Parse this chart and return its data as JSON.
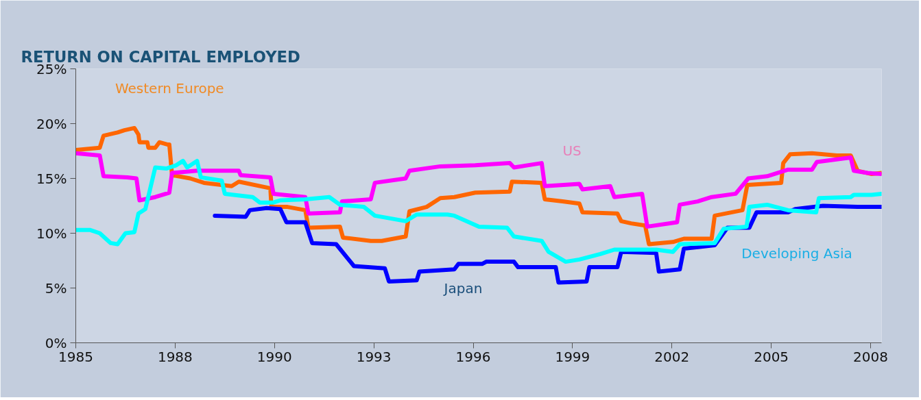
{
  "chart_data": {
    "type": "line",
    "title": "RETURN ON CAPITAL EMPLOYED",
    "xlim": [
      1984.65,
      2008.17
    ],
    "ylim": [
      0,
      25
    ],
    "xticks": [
      {
        "value": 1984.65,
        "label": "1985"
      },
      {
        "value": 1987.55,
        "label": "1988"
      },
      {
        "value": 1990.45,
        "label": "1990"
      },
      {
        "value": 1993.35,
        "label": "1993"
      },
      {
        "value": 1996.25,
        "label": "1996"
      },
      {
        "value": 1999.15,
        "label": "1999"
      },
      {
        "value": 2002.05,
        "label": "2002"
      },
      {
        "value": 2004.95,
        "label": "2005"
      },
      {
        "value": 2007.85,
        "label": "2008"
      }
    ],
    "yticks": [
      {
        "value": 0,
        "label": "0%"
      },
      {
        "value": 5,
        "label": "5%"
      },
      {
        "value": 10,
        "label": "10%"
      },
      {
        "value": 15,
        "label": "15%"
      },
      {
        "value": 20,
        "label": "20%"
      },
      {
        "value": 25,
        "label": "25%"
      }
    ],
    "grid": false,
    "legend": false,
    "marker": "none",
    "line_style": "solid",
    "series": [
      {
        "name": "Western Europe",
        "color": "#ff6600",
        "x": [
          1984.65,
          1985.35,
          1985.46,
          1985.87,
          1986.07,
          1986.36,
          1986.48,
          1986.51,
          1986.74,
          1986.77,
          1986.97,
          1987.09,
          1987.32,
          1987.38,
          1987.46,
          1987.99,
          1988.39,
          1989.2,
          1989.41,
          1990.33,
          1990.36,
          1990.83,
          1991.35,
          1991.44,
          1992.36,
          1992.45,
          1993.26,
          1993.58,
          1994.28,
          1994.39,
          1994.89,
          1995.29,
          1995.7,
          1996.31,
          1997.32,
          1997.38,
          1998.25,
          1998.34,
          1998.86,
          1999.35,
          1999.44,
          2000.46,
          2000.57,
          2000.86,
          2001.27,
          2001.38,
          2002.08,
          2002.4,
          2003.21,
          2003.3,
          2004.11,
          2004.25,
          2005.24,
          2005.3,
          2005.5,
          2006.14,
          2006.86,
          2007.27,
          2007.47,
          2007.88,
          2008.17
        ],
        "values": [
          17.6,
          17.8,
          18.9,
          19.2,
          19.4,
          19.6,
          19.0,
          18.3,
          18.3,
          17.8,
          17.8,
          18.3,
          18.1,
          18.1,
          15.3,
          15.0,
          14.6,
          14.3,
          14.7,
          14.1,
          12.4,
          12.4,
          12.1,
          10.5,
          10.6,
          9.6,
          9.3,
          9.3,
          9.7,
          12.0,
          12.4,
          13.2,
          13.3,
          13.7,
          13.8,
          14.7,
          14.6,
          13.1,
          12.9,
          12.7,
          11.9,
          11.8,
          11.1,
          10.9,
          10.7,
          9.0,
          9.2,
          9.5,
          9.5,
          11.6,
          12.1,
          14.4,
          14.6,
          16.4,
          17.2,
          17.3,
          17.1,
          17.1,
          15.7,
          15.4,
          15.5
        ]
      },
      {
        "name": "US",
        "color": "#ff00ff",
        "x": [
          1984.65,
          1985.35,
          1985.46,
          1986.16,
          1986.42,
          1986.51,
          1986.97,
          1987.38,
          1987.46,
          1988.19,
          1988.8,
          1989.41,
          1989.46,
          1990.33,
          1990.42,
          1991.35,
          1991.44,
          1992.36,
          1992.42,
          1993.26,
          1993.38,
          1994.28,
          1994.39,
          1995.29,
          1996.31,
          1997.32,
          1997.44,
          1998.25,
          1998.34,
          1999.35,
          1999.44,
          2000.25,
          2000.37,
          2001.18,
          2001.33,
          2002.2,
          2002.28,
          2002.8,
          2003.21,
          2003.91,
          2004.28,
          2004.83,
          2005.44,
          2006.14,
          2006.28,
          2007.27,
          2007.36,
          2007.76,
          2008.17
        ],
        "values": [
          17.3,
          17.1,
          15.2,
          15.1,
          15.0,
          13.0,
          13.3,
          13.7,
          15.5,
          15.7,
          15.7,
          15.7,
          15.3,
          15.1,
          13.6,
          13.3,
          11.8,
          11.9,
          12.9,
          13.1,
          14.6,
          15.0,
          15.7,
          16.1,
          16.2,
          16.4,
          16.0,
          16.4,
          14.3,
          14.5,
          14.0,
          14.3,
          13.3,
          13.6,
          10.6,
          11.0,
          12.6,
          12.9,
          13.3,
          13.6,
          15.0,
          15.2,
          15.8,
          15.8,
          16.5,
          16.9,
          15.7,
          15.5,
          15.4
        ]
      },
      {
        "name": "Japan",
        "color": "#0000ff",
        "x": [
          1988.71,
          1989.61,
          1989.73,
          1990.22,
          1990.62,
          1990.8,
          1991.35,
          1991.55,
          1992.25,
          1992.77,
          1993.67,
          1993.79,
          1994.6,
          1994.68,
          1995.7,
          1995.82,
          1996.51,
          1996.63,
          1997.44,
          1997.56,
          1998.66,
          1998.74,
          1999.56,
          1999.64,
          2000.46,
          2000.57,
          2001.59,
          2001.67,
          2002.28,
          2002.4,
          2003.3,
          2003.67,
          2004.31,
          2004.52,
          2005.44,
          2005.65,
          2006.46,
          2007.47,
          2008.17
        ],
        "values": [
          11.6,
          11.5,
          12.1,
          12.3,
          12.2,
          11.0,
          11.0,
          9.1,
          9.0,
          7.0,
          6.8,
          5.6,
          5.7,
          6.5,
          6.7,
          7.2,
          7.2,
          7.4,
          7.4,
          6.9,
          6.9,
          5.5,
          5.6,
          6.9,
          6.9,
          8.3,
          8.2,
          6.5,
          6.7,
          8.6,
          8.9,
          10.5,
          10.5,
          11.9,
          11.9,
          12.2,
          12.5,
          12.4,
          12.4
        ]
      },
      {
        "name": "Developing Asia",
        "color": "#00ffff",
        "x": [
          1984.65,
          1985.06,
          1985.35,
          1985.67,
          1985.87,
          1986.1,
          1986.36,
          1986.48,
          1986.68,
          1986.97,
          1987.29,
          1987.58,
          1987.78,
          1987.9,
          1988.19,
          1988.3,
          1988.91,
          1989.0,
          1989.81,
          1990.02,
          1990.42,
          1990.62,
          1991.35,
          1992.05,
          1992.36,
          1993.06,
          1993.38,
          1994.28,
          1994.6,
          1995.5,
          1995.7,
          1996.42,
          1997.24,
          1997.44,
          1998.25,
          1998.45,
          1998.95,
          1999.35,
          1999.96,
          2000.37,
          2001.59,
          2002.08,
          2002.28,
          2003.3,
          2003.56,
          2004.23,
          2004.31,
          2004.83,
          2005.44,
          2006.26,
          2006.34,
          2007.27,
          2007.36,
          2007.88,
          2008.17
        ],
        "values": [
          10.3,
          10.3,
          10.0,
          9.1,
          9.0,
          10.0,
          10.1,
          11.8,
          12.2,
          16.0,
          15.9,
          16.2,
          16.6,
          16.0,
          16.6,
          15.1,
          14.8,
          13.6,
          13.3,
          12.8,
          12.8,
          13.0,
          13.1,
          13.3,
          12.6,
          12.4,
          11.6,
          11.1,
          11.7,
          11.7,
          11.6,
          10.6,
          10.5,
          9.7,
          9.3,
          8.3,
          7.4,
          7.6,
          8.1,
          8.5,
          8.5,
          8.3,
          9.0,
          9.1,
          10.4,
          10.6,
          12.4,
          12.6,
          12.1,
          11.9,
          13.2,
          13.3,
          13.5,
          13.5,
          13.6
        ]
      }
    ]
  }
}
